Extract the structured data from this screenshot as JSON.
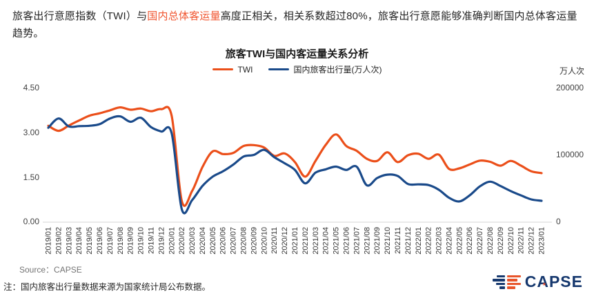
{
  "page": {
    "intro": {
      "seg1": "旅客出行意愿指数（TWI）与",
      "highlight": "国内总体客运量",
      "seg2": "高度正相关，相关系数超过80%，旅客出行意愿能够准确判断国内总体客运量趋势。",
      "highlight_color": "#f0552f"
    },
    "source": "Source：CAPSE",
    "note": "注：国内旅客出行量数据来源为国家统计局公布数据。",
    "logo_text": "CAPSE",
    "logo_star": "★"
  },
  "chart_data": {
    "type": "line",
    "title": "旅客TWI与国内客运量关系分析",
    "right_axis_unit": "万人次",
    "grid": false,
    "legend_position": "top",
    "categories": [
      "2019/01",
      "2019/02",
      "2019/03",
      "2019/04",
      "2019/05",
      "2019/06",
      "2019/07",
      "2019/08",
      "2019/09",
      "2019/10",
      "2019/11",
      "2019/12",
      "2020/01",
      "2020/02",
      "2020/03",
      "2020/04",
      "2020/05",
      "2020/06",
      "2020/07",
      "2020/08",
      "2020/09",
      "2020/10",
      "2020/11",
      "2020/12",
      "2021/01",
      "2021/02",
      "2021/03",
      "2021/04",
      "2021/05",
      "2021/06",
      "2021/07",
      "2021/08",
      "2021/09",
      "2021/10",
      "2021/11",
      "2021/12",
      "2022/01",
      "2022/02",
      "2022/03",
      "2022/04",
      "2022/05",
      "2022/06",
      "2022/07",
      "2022/08",
      "2022/09",
      "2022/10",
      "2022/11",
      "2022/12",
      "2023/01"
    ],
    "series": [
      {
        "name": "TWI",
        "axis": "left",
        "color": "#eb4f1a",
        "values": [
          3.24,
          3.07,
          3.25,
          3.42,
          3.58,
          3.66,
          3.76,
          3.86,
          3.78,
          3.82,
          3.73,
          3.8,
          3.58,
          0.7,
          1.05,
          1.85,
          2.38,
          2.29,
          2.33,
          2.56,
          2.59,
          2.51,
          2.23,
          2.31,
          2.02,
          1.53,
          2.06,
          2.6,
          2.95,
          2.56,
          2.4,
          2.13,
          2.06,
          2.35,
          2.02,
          2.25,
          2.3,
          2.13,
          2.27,
          1.79,
          1.81,
          1.94,
          2.07,
          2.03,
          1.9,
          2.06,
          1.9,
          1.71,
          1.65
        ]
      },
      {
        "name": "国内旅客出行量(万人次)",
        "axis": "right",
        "color": "#1a4a8a",
        "values": [
          141000,
          155000,
          143000,
          143500,
          144000,
          146500,
          155000,
          158000,
          150000,
          156000,
          142000,
          135500,
          133000,
          19000,
          33000,
          54000,
          68000,
          76000,
          86000,
          98000,
          100500,
          108000,
          97000,
          88000,
          78000,
          58000,
          74000,
          79000,
          83000,
          78000,
          83000,
          55000,
          66000,
          71000,
          69000,
          57000,
          56500,
          55500,
          48500,
          36500,
          31000,
          40000,
          53500,
          60500,
          54000,
          46500,
          40000,
          34000,
          32000
        ]
      }
    ],
    "left_axis": {
      "min": 0,
      "max": 4.5,
      "ticks": [
        "0.00",
        "1.50",
        "3.00",
        "4.50"
      ]
    },
    "right_axis": {
      "min": 0,
      "max": 200000,
      "ticks": [
        "0",
        "100000",
        "200000"
      ]
    }
  }
}
